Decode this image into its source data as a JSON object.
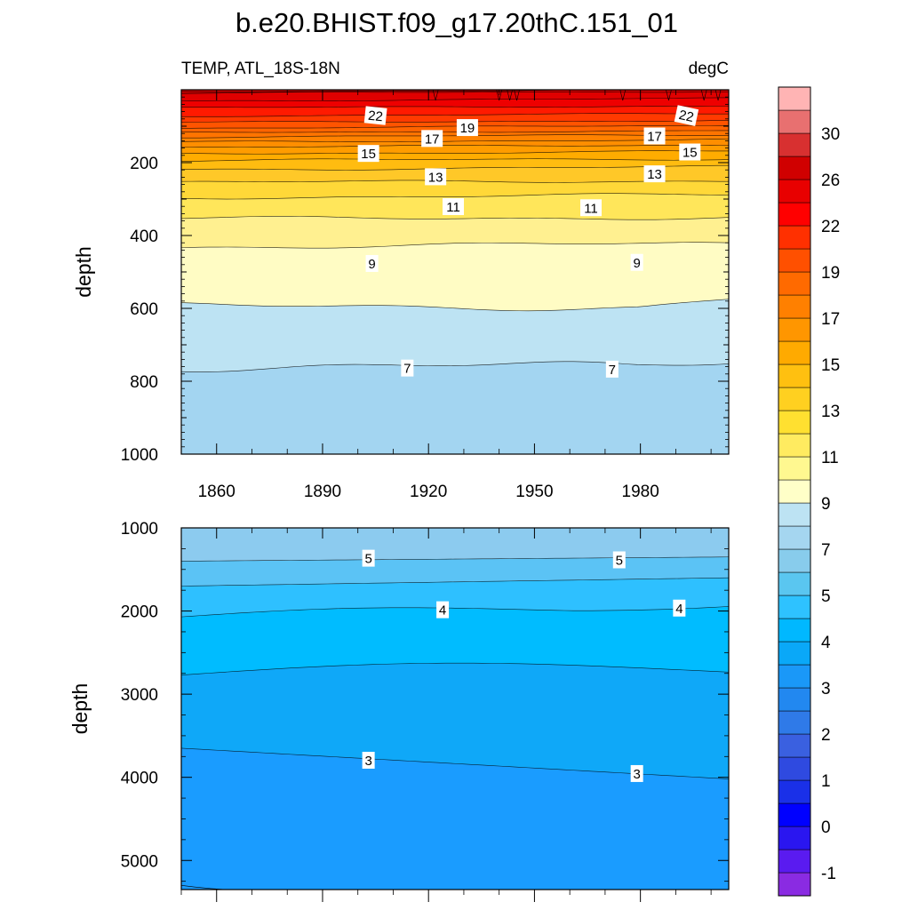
{
  "title": "b.e20.BHIST.f09_g17.20thC.151_01",
  "variable_label": "TEMP, ATL_18S-18N",
  "units_label": "degC",
  "colors": {
    "levels": [
      "#8a2be2",
      "#5a1bf0",
      "#2a16f0",
      "#0000ff",
      "#1a30e8",
      "#2f4ae0",
      "#3a60e0",
      "#2f7ae8",
      "#2288f0",
      "#1a98f8",
      "#0aa8f8",
      "#00b8ff",
      "#2ec2ff",
      "#5ac6f0",
      "#88ccec",
      "#a5d6f0",
      "#bde3f3",
      "#ffffc8",
      "#fff890",
      "#ffeb60",
      "#ffe030",
      "#ffd020",
      "#ffc010",
      "#ffaa00",
      "#ff9600",
      "#ff8000",
      "#ff6a00",
      "#ff5000",
      "#ff3000",
      "#ff0000",
      "#e80000",
      "#d00000",
      "#d83030",
      "#e87070",
      "#ffb4b4"
    ]
  },
  "chart_data": [
    {
      "type": "contour",
      "panel": "upper",
      "xlabel": "",
      "ylabel": "depth",
      "xlim": [
        1850,
        2005
      ],
      "ylim": [
        0,
        1000
      ],
      "y_inverted": true,
      "x_ticks": [
        1860,
        1890,
        1920,
        1950,
        1980
      ],
      "y_ticks": [
        200,
        400,
        600,
        800,
        1000
      ],
      "isotherm_depth_boundaries": [
        {
          "t": 30,
          "depth": 5
        },
        {
          "t": 28,
          "depth": 10
        },
        {
          "t": 26,
          "depth": 30
        },
        {
          "t": 24,
          "depth": 50
        },
        {
          "t": 22,
          "depth": 72
        },
        {
          "t": 21,
          "depth": 90
        },
        {
          "t": 20,
          "depth": 105
        },
        {
          "t": 19,
          "depth": 118
        },
        {
          "t": 18,
          "depth": 130
        },
        {
          "t": 17,
          "depth": 143
        },
        {
          "t": 16,
          "depth": 158
        },
        {
          "t": 15,
          "depth": 175
        },
        {
          "t": 14,
          "depth": 195
        },
        {
          "t": 13,
          "depth": 218
        },
        {
          "t": 12,
          "depth": 255
        },
        {
          "t": 11,
          "depth": 295
        },
        {
          "t": 10,
          "depth": 355
        },
        {
          "t": 9,
          "depth": 430
        },
        {
          "t": 8,
          "depth": 595
        },
        {
          "t": 7,
          "depth": 760
        }
      ],
      "contour_labels": [
        {
          "text": "22",
          "x": 1905,
          "depth": 72
        },
        {
          "text": "22",
          "x": 1993,
          "depth": 72
        },
        {
          "text": "19",
          "x": 1931,
          "depth": 105
        },
        {
          "text": "17",
          "x": 1921,
          "depth": 135
        },
        {
          "text": "17",
          "x": 1984,
          "depth": 128
        },
        {
          "text": "15",
          "x": 1903,
          "depth": 176
        },
        {
          "text": "15",
          "x": 1994,
          "depth": 172
        },
        {
          "text": "13",
          "x": 1922,
          "depth": 240
        },
        {
          "text": "13",
          "x": 1984,
          "depth": 232
        },
        {
          "text": "11",
          "x": 1927,
          "depth": 322
        },
        {
          "text": "11",
          "x": 1966,
          "depth": 325
        },
        {
          "text": "9",
          "x": 1904,
          "depth": 478
        },
        {
          "text": "9",
          "x": 1979,
          "depth": 475
        },
        {
          "text": "7",
          "x": 1914,
          "depth": 765
        },
        {
          "text": "7",
          "x": 1972,
          "depth": 768
        }
      ]
    },
    {
      "type": "contour",
      "panel": "lower",
      "xlabel": "",
      "ylabel": "depth",
      "xlim": [
        1850,
        2005
      ],
      "ylim": [
        1000,
        5350
      ],
      "y_inverted": true,
      "y_ticks": [
        1000,
        2000,
        3000,
        4000,
        5000
      ],
      "isotherm_depth_boundaries": [
        {
          "t": 6,
          "depth_start": 1400,
          "depth_end": 1350
        },
        {
          "t": 5,
          "depth_start": 1700,
          "depth_end": 1600
        },
        {
          "t": 4.5,
          "depth_start": 2070,
          "depth_end": 1930
        },
        {
          "t": 4,
          "depth_start": 2770,
          "depth_end": 2700
        },
        {
          "t": 3,
          "depth_start": 3650,
          "depth_end": 4020
        }
      ],
      "contour_labels": [
        {
          "text": "5",
          "x": 1903,
          "depth": 1370
        },
        {
          "text": "5",
          "x": 1974,
          "depth": 1390
        },
        {
          "text": "4",
          "x": 1924,
          "depth": 1990
        },
        {
          "text": "4",
          "x": 1991,
          "depth": 1970
        },
        {
          "text": "3",
          "x": 1903,
          "depth": 3800
        },
        {
          "text": "3",
          "x": 1979,
          "depth": 3960
        }
      ]
    },
    {
      "type": "colorbar",
      "tick_labels": [
        "30",
        "26",
        "22",
        "19",
        "17",
        "15",
        "13",
        "11",
        "9",
        "7",
        "5",
        "4",
        "3",
        "2",
        "1",
        "0",
        "-1",
        "-2"
      ]
    }
  ]
}
